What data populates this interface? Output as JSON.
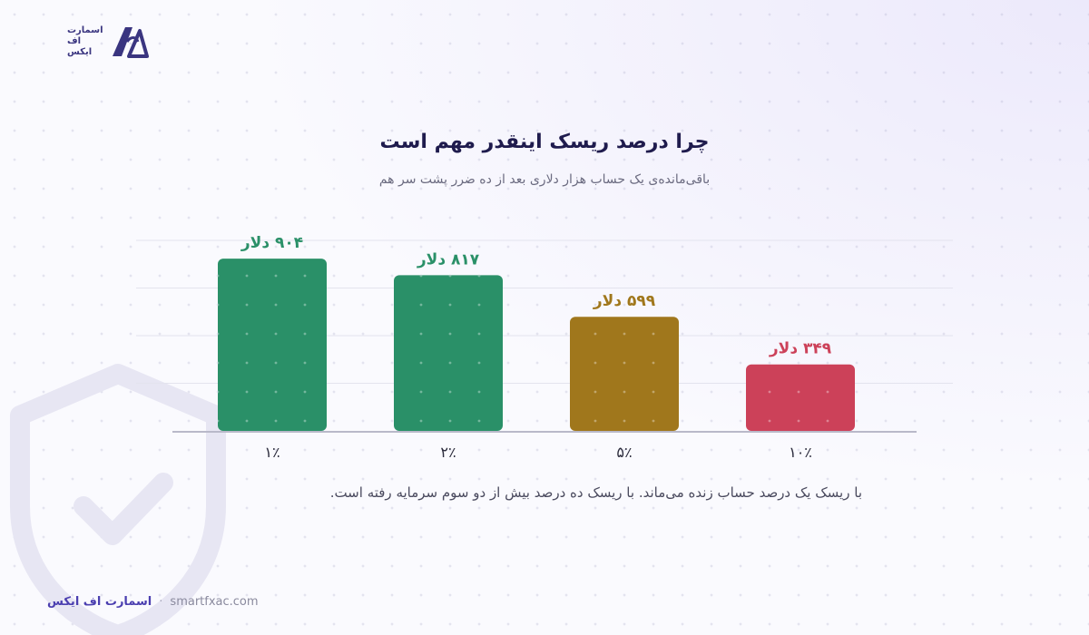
{
  "brand": {
    "logo_lines": [
      "اسمارت",
      "اف",
      "ایکس"
    ],
    "footer_name": "اسمارت اف ایکس",
    "footer_separator": "·",
    "footer_url": "smartfxac.com"
  },
  "title": "چرا درصد ریسک اینقدر مهم است",
  "subtitle": "باقی‌مانده‌ی یک حساب هزار دلاری بعد از ده ضرر پشت سر هم",
  "caption": "با ریسک یک درصد حساب زنده می‌ماند. با ریسک ده درصد بیش از دو سوم سرمایه رفته است.",
  "colors": {
    "green": "#2a9068",
    "amber": "#a0771c",
    "red": "#cc4159",
    "brand": "#4b3fb0"
  },
  "chart_data": {
    "type": "bar",
    "categories": [
      "۱٪",
      "۲٪",
      "۵٪",
      "۱۰٪"
    ],
    "values": [
      904,
      817,
      599,
      349
    ],
    "value_labels": [
      "۹۰۴ دلار",
      "۸۱۷ دلار",
      "۵۹۹ دلار",
      "۳۴۹ دلار"
    ],
    "bar_colors": [
      "#2a9068",
      "#2a9068",
      "#a0771c",
      "#cc4159"
    ],
    "title": "چرا درصد ریسک اینقدر مهم است",
    "subtitle": "باقی‌مانده‌ی یک حساب هزار دلاری بعد از ده ضرر پشت سر هم",
    "xlabel": "",
    "ylabel": "",
    "ylim": [
      0,
      1000
    ],
    "grid": true,
    "legend": "none"
  }
}
